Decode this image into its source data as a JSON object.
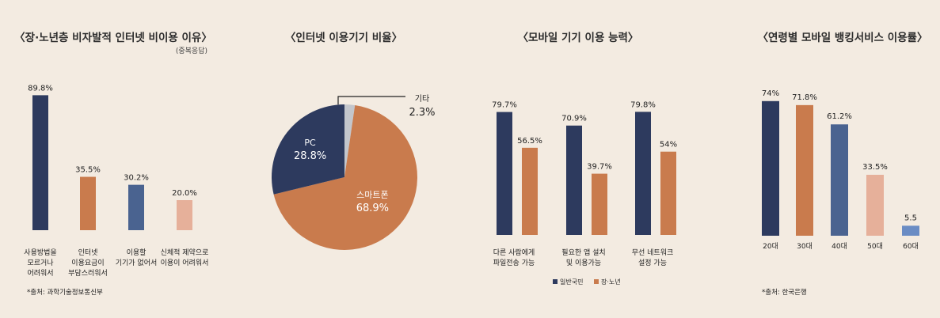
{
  "colors": {
    "navy": "#2d3a5e",
    "orange": "#c97b4d",
    "blue": "#4a6390",
    "peach": "#e6b09a",
    "lightblue": "#6a8cc4",
    "gray": "#c3c6cc"
  },
  "chart_data": [
    {
      "type": "bar",
      "title": "〈장·노년층 비자발적 인터넷 비이용 이유〉",
      "subtitle": "(중복응답)",
      "categories": [
        [
          "사용방법을",
          "모르거나",
          "어려워서"
        ],
        [
          "인터넷",
          "이용요금이",
          "부담스러워서"
        ],
        [
          "이용할",
          "기기가 없어서"
        ],
        [
          "신체적 제약으로",
          "이용이 어려워서"
        ]
      ],
      "values": [
        89.8,
        35.5,
        30.2,
        20.0
      ],
      "value_labels": [
        "89.8%",
        "35.5%",
        "30.2%",
        "20.0%"
      ],
      "colors": [
        "navy",
        "orange",
        "blue",
        "peach"
      ],
      "ylim": [
        0,
        100
      ],
      "source": "*출처: 과학기술정보통신부"
    },
    {
      "type": "pie",
      "title": "〈인터넷 이용기기 비율〉",
      "slices": [
        {
          "label": "기타",
          "value": 2.3,
          "value_label": "2.3%",
          "color": "gray"
        },
        {
          "label": "스마트폰",
          "value": 68.9,
          "value_label": "68.9%",
          "color": "orange"
        },
        {
          "label": "PC",
          "value": 28.8,
          "value_label": "28.8%",
          "color": "navy"
        }
      ]
    },
    {
      "type": "bar",
      "title": "〈모바일 기기 이용 능력〉",
      "categories": [
        [
          "다른 사람에게",
          "파일전송 가능"
        ],
        [
          "필요한 앱 설치",
          "및 이용가능"
        ],
        [
          "무선 네트워크",
          "설정 가능"
        ]
      ],
      "series": [
        {
          "name": "일반국민",
          "color": "navy",
          "values": [
            79.7,
            70.9,
            79.8
          ],
          "value_labels": [
            "79.7%",
            "70.9%",
            "79.8%"
          ]
        },
        {
          "name": "장·노년",
          "color": "orange",
          "values": [
            56.5,
            39.7,
            54.0
          ],
          "value_labels": [
            "56.5%",
            "39.7%",
            "54%"
          ]
        }
      ],
      "ylim": [
        0,
        100
      ]
    },
    {
      "type": "bar",
      "title": "〈연령별 모바일 뱅킹서비스 이용률〉",
      "categories": [
        "20대",
        "30대",
        "40대",
        "50대",
        "60대"
      ],
      "values": [
        74,
        71.8,
        61.2,
        33.5,
        5.5
      ],
      "value_labels": [
        "74%",
        "71.8%",
        "61.2%",
        "33.5%",
        "5.5"
      ],
      "colors": [
        "navy",
        "orange",
        "blue",
        "peach",
        "lightblue"
      ],
      "ylim": [
        0,
        100
      ],
      "source": "*출처: 한국은행"
    }
  ]
}
